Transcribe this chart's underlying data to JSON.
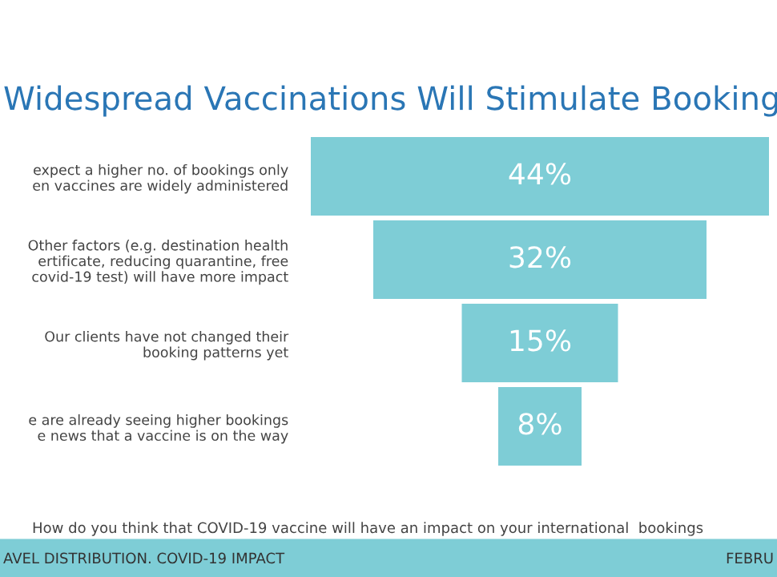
{
  "chart_data": {
    "type": "other",
    "title": "Widespread Vaccinations Will Stimulate Booking",
    "categories": [
      "expect a higher no. of bookings only\nen vaccines are widely administered",
      "Other factors (e.g. destination health\nertificate, reducing quarantine, free\ncovid-19 test) will have more impact",
      "Our clients have not changed their\nbooking patterns yet",
      "e are already seeing higher bookings\ne news that a vaccine is on the way"
    ],
    "values": [
      44,
      32,
      15,
      8
    ],
    "value_labels": [
      "44%",
      "32%",
      "15%",
      "8%"
    ],
    "color": "#7ecdd6",
    "annotations": [
      "How do you think that COVID-19 vaccine will have an impact on your international  bookings",
      "AVEL DISTRIBUTION. COVID-19 IMPACT",
      "FEBRU"
    ]
  }
}
